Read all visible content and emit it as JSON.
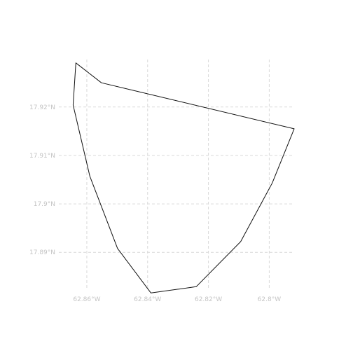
{
  "chart_data": {
    "type": "map",
    "xlim": [
      -62.8692,
      -62.7918
    ],
    "ylim": [
      17.8815,
      17.9298
    ],
    "x_ticks": [
      {
        "value": -62.86,
        "label": "62.86°W"
      },
      {
        "value": -62.84,
        "label": "62.84°W"
      },
      {
        "value": -62.82,
        "label": "62.82°W"
      },
      {
        "value": -62.8,
        "label": "62.8°W"
      }
    ],
    "y_ticks": [
      {
        "value": 17.92,
        "label": "17.92°N"
      },
      {
        "value": 17.91,
        "label": "17.91°N"
      },
      {
        "value": 17.9,
        "label": "17.9°N"
      },
      {
        "value": 17.89,
        "label": "17.89°N"
      }
    ],
    "grid": true,
    "outline_color": "#111111",
    "polygon": [
      [
        -62.8636,
        17.9291
      ],
      [
        -62.8552,
        17.925
      ],
      [
        -62.7918,
        17.9155
      ],
      [
        -62.799,
        17.9043
      ],
      [
        -62.8094,
        17.8922
      ],
      [
        -62.824,
        17.8829
      ],
      [
        -62.8389,
        17.8816
      ],
      [
        -62.8499,
        17.8908
      ],
      [
        -62.859,
        17.9057
      ],
      [
        -62.8645,
        17.9204
      ],
      [
        -62.8636,
        17.9291
      ]
    ]
  }
}
